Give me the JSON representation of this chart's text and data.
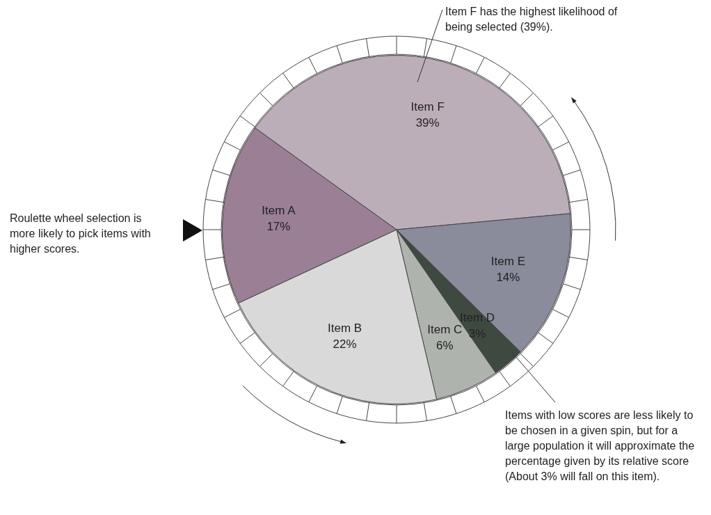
{
  "chart_data": {
    "type": "pie",
    "categories": [
      "Item F",
      "Item E",
      "Item D",
      "Item C",
      "Item B",
      "Item A"
    ],
    "values": [
      39,
      14,
      3,
      6,
      22,
      17
    ],
    "colors": [
      "#bcaeb9",
      "#8a8b9b",
      "#3e4a40",
      "#aeb3ad",
      "#d8d9d8",
      "#9a7f95"
    ],
    "value_labels": [
      "39%",
      "14%",
      "3%",
      "6%",
      "22%",
      "17%"
    ],
    "annotations": [
      "Item F has the highest likelihood of being selected (39%).",
      "Roulette wheel selection is more likely to pick items with higher scores.",
      "Items with low scores are less likely to be chosen in a given spin, but for a large population it will approximate the percentage given by its relative score (About 3% will fall on this item)."
    ]
  }
}
